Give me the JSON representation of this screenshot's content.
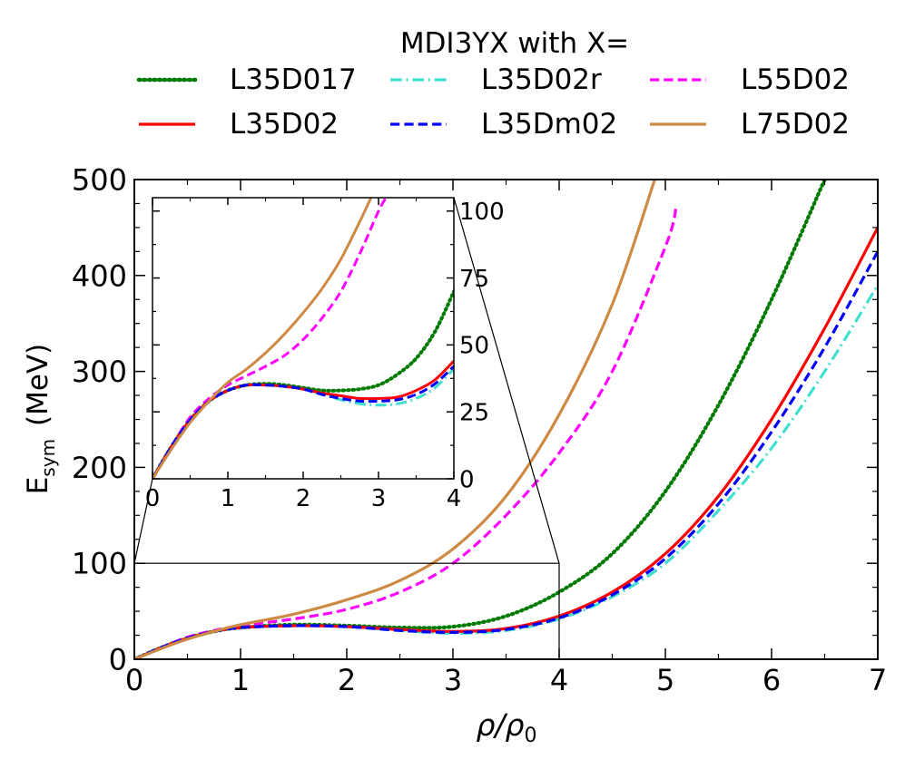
{
  "legend": {
    "title": "MDI3YX with X=",
    "placement": "top",
    "columns": 3
  },
  "chart_data": [
    {
      "id": "main",
      "type": "line",
      "xlabel_main": "ρ/ρ",
      "xlabel_sub": "0",
      "ylabel_main": "E",
      "ylabel_sub": "sym",
      "ylabel_unit": "(MeV)",
      "xlim": [
        0,
        7
      ],
      "ylim": [
        0,
        500
      ],
      "xticks": [
        0,
        1,
        2,
        3,
        4,
        5,
        6,
        7
      ],
      "yticks": [
        0,
        100,
        200,
        300,
        400,
        500
      ],
      "xticks_minor": [
        0.5,
        1.5,
        2.5,
        3.5,
        4.5,
        5.5,
        6.5
      ],
      "yticks_minor": [
        25,
        50,
        75,
        125,
        150,
        175,
        225,
        250,
        275,
        325,
        350,
        375,
        425,
        450,
        475
      ],
      "zoom_box": {
        "x": [
          0,
          4
        ],
        "y": [
          0,
          100
        ]
      },
      "grid": false,
      "series": [
        {
          "name": "L35D017",
          "color": "#007a00",
          "dash": "dotted",
          "x": [
            0,
            0.25,
            0.5,
            0.75,
            1,
            1.5,
            2,
            2.5,
            3,
            3.5,
            4,
            4.5,
            5,
            5.5,
            6,
            6.5
          ],
          "y": [
            0,
            12,
            22,
            29,
            33,
            36,
            35,
            33,
            34,
            45,
            70,
            110,
            175,
            265,
            375,
            500
          ]
        },
        {
          "name": "L35D02r",
          "color": "#40e0d0",
          "dash": "dashdot",
          "x": [
            0,
            0.25,
            0.5,
            0.75,
            1,
            1.5,
            2,
            2.5,
            3,
            3.5,
            4,
            4.5,
            5,
            5.5,
            6,
            6.5,
            7
          ],
          "y": [
            0,
            12,
            22,
            29,
            33,
            35,
            34,
            30,
            27,
            30,
            42,
            65,
            100,
            155,
            220,
            300,
            390
          ]
        },
        {
          "name": "L55D02",
          "color": "#ff00ff",
          "dash": "dashed",
          "x": [
            0,
            0.25,
            0.5,
            0.75,
            1,
            1.5,
            2,
            2.5,
            3,
            3.5,
            4,
            4.5,
            5,
            5.1
          ],
          "y": [
            0,
            12,
            23,
            30,
            35,
            42,
            52,
            70,
            100,
            150,
            215,
            300,
            430,
            470
          ]
        },
        {
          "name": "L35D02",
          "color": "#ff0000",
          "dash": "solid",
          "x": [
            0,
            0.25,
            0.5,
            0.75,
            1,
            1.5,
            2,
            2.5,
            3,
            3.5,
            4,
            4.5,
            5,
            5.5,
            6,
            6.5,
            7
          ],
          "y": [
            0,
            12,
            22,
            29,
            33,
            35,
            34,
            31,
            29,
            32,
            45,
            70,
            110,
            170,
            250,
            345,
            450
          ]
        },
        {
          "name": "L35Dm02",
          "color": "#0000ff",
          "dash": "dashed",
          "x": [
            0,
            0.25,
            0.5,
            0.75,
            1,
            1.5,
            2,
            2.5,
            3,
            3.5,
            4,
            4.5,
            5,
            5.5,
            6,
            6.5,
            7
          ],
          "y": [
            0,
            12,
            22,
            29,
            33,
            35,
            34,
            30,
            28,
            31,
            43,
            67,
            105,
            162,
            237,
            325,
            425
          ]
        },
        {
          "name": "L75D02",
          "color": "#cd8a45",
          "dash": "solid",
          "x": [
            0,
            0.25,
            0.5,
            0.75,
            1,
            1.5,
            2,
            2.5,
            3,
            3.5,
            4,
            4.5,
            4.9
          ],
          "y": [
            0,
            11,
            21,
            29,
            36,
            47,
            62,
            82,
            115,
            170,
            255,
            370,
            500
          ]
        }
      ]
    },
    {
      "id": "inset",
      "type": "line",
      "xlim": [
        0,
        4
      ],
      "ylim": [
        0,
        105
      ],
      "xticks": [
        0,
        1,
        2,
        3,
        4
      ],
      "yticks": [
        0,
        25,
        50,
        75,
        100
      ],
      "xticks_minor": [
        0.5,
        1.5,
        2.5,
        3.5
      ],
      "yticks_minor": [
        12.5,
        37.5,
        62.5,
        87.5
      ],
      "grid": false,
      "series": [
        {
          "name": "L35D017",
          "color": "#007a00",
          "dash": "dotted",
          "x": [
            0,
            0.25,
            0.5,
            0.75,
            1,
            1.25,
            1.5,
            1.75,
            2,
            2.25,
            2.5,
            2.75,
            3,
            3.25,
            3.5,
            3.75,
            4
          ],
          "y": [
            0,
            12,
            22,
            29,
            33,
            35,
            35.5,
            35,
            34,
            33,
            33,
            33.5,
            35,
            39,
            45,
            55,
            70
          ]
        },
        {
          "name": "L35D02r",
          "color": "#40e0d0",
          "dash": "dashdot",
          "x": [
            0,
            0.25,
            0.5,
            0.75,
            1,
            1.25,
            1.5,
            1.75,
            2,
            2.25,
            2.5,
            2.75,
            3,
            3.25,
            3.5,
            3.75,
            4
          ],
          "y": [
            0,
            12,
            22,
            29,
            33,
            35,
            35,
            34.5,
            33.5,
            31.5,
            29.5,
            28,
            27.5,
            28,
            30,
            34,
            41
          ]
        },
        {
          "name": "L55D02",
          "color": "#ff00ff",
          "dash": "dashed",
          "x": [
            0,
            0.25,
            0.5,
            0.75,
            1,
            1.25,
            1.5,
            1.75,
            2,
            2.25,
            2.5,
            2.75,
            3,
            3.1
          ],
          "y": [
            0,
            12,
            23,
            30,
            35,
            38.5,
            42,
            46,
            52,
            60,
            70,
            84,
            100,
            105
          ]
        },
        {
          "name": "L35D02",
          "color": "#ff0000",
          "dash": "solid",
          "x": [
            0,
            0.25,
            0.5,
            0.75,
            1,
            1.25,
            1.5,
            1.75,
            2,
            2.25,
            2.5,
            2.75,
            3,
            3.25,
            3.5,
            3.75,
            4
          ],
          "y": [
            0,
            12,
            22,
            29,
            33,
            35,
            35,
            34.5,
            33.5,
            32,
            31,
            30,
            30,
            30.5,
            33,
            37,
            44
          ]
        },
        {
          "name": "L35Dm02",
          "color": "#0000ff",
          "dash": "dashed",
          "x": [
            0,
            0.25,
            0.5,
            0.75,
            1,
            1.25,
            1.5,
            1.75,
            2,
            2.25,
            2.5,
            2.75,
            3,
            3.25,
            3.5,
            3.75,
            4
          ],
          "y": [
            0,
            12,
            22,
            29,
            33,
            35,
            35,
            34.5,
            33.5,
            31.5,
            30,
            29,
            29,
            29.5,
            31.5,
            35.5,
            42
          ]
        },
        {
          "name": "L75D02",
          "color": "#cd8a45",
          "dash": "solid",
          "x": [
            0,
            0.25,
            0.5,
            0.75,
            1,
            1.25,
            1.5,
            1.75,
            2,
            2.25,
            2.5,
            2.75,
            2.9
          ],
          "y": [
            0,
            11,
            21,
            29,
            36,
            41,
            47,
            54,
            62,
            71,
            82,
            96,
            105
          ]
        }
      ]
    }
  ]
}
